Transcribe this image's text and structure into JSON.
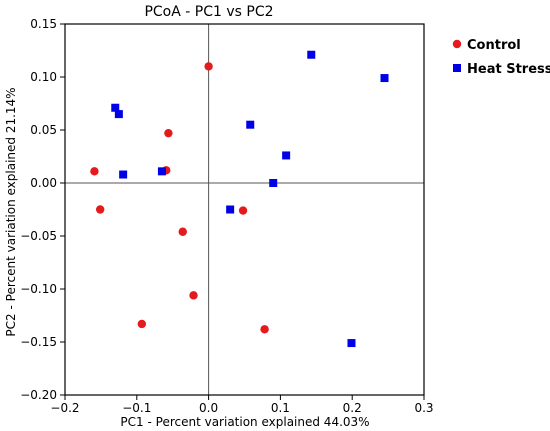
{
  "chart_data": {
    "type": "scatter",
    "title": "PCoA - PC1 vs PC2",
    "xlabel": "PC1 - Percent variation explained 44.03%",
    "ylabel": "PC2 - Percent variation explained 21.14%",
    "xlim": [
      -0.2,
      0.3
    ],
    "ylim": [
      -0.2,
      0.15
    ],
    "xticks": [
      -0.2,
      -0.1,
      0.0,
      0.1,
      0.2,
      0.3
    ],
    "xtick_labels": [
      "−0.2",
      "−0.1",
      "0.0",
      "0.1",
      "0.2",
      "0.3"
    ],
    "yticks": [
      -0.2,
      -0.15,
      -0.1,
      -0.05,
      0.0,
      0.05,
      0.1,
      0.15
    ],
    "ytick_labels": [
      "−0.20",
      "−0.15",
      "−0.10",
      "−0.05",
      "0.00",
      "0.05",
      "0.10",
      "0.15"
    ],
    "zero_lines": true,
    "legend_position": "outside-top-right",
    "series": [
      {
        "name": "Control",
        "marker": "circle",
        "color": "#e41a1c",
        "points": [
          [
            0.0,
            0.11
          ],
          [
            -0.056,
            0.047
          ],
          [
            -0.159,
            0.011
          ],
          [
            -0.059,
            0.012
          ],
          [
            -0.151,
            -0.025
          ],
          [
            -0.036,
            -0.046
          ],
          [
            0.048,
            -0.026
          ],
          [
            -0.021,
            -0.106
          ],
          [
            -0.093,
            -0.133
          ],
          [
            0.078,
            -0.138
          ]
        ]
      },
      {
        "name": "Heat Stress",
        "marker": "square",
        "color": "#0000e6",
        "points": [
          [
            -0.13,
            0.071
          ],
          [
            -0.125,
            0.065
          ],
          [
            -0.119,
            0.008
          ],
          [
            -0.065,
            0.011
          ],
          [
            0.143,
            0.121
          ],
          [
            0.245,
            0.099
          ],
          [
            0.058,
            0.055
          ],
          [
            0.108,
            0.026
          ],
          [
            0.09,
            0.0
          ],
          [
            0.03,
            -0.025
          ],
          [
            0.199,
            -0.151
          ]
        ]
      }
    ]
  }
}
